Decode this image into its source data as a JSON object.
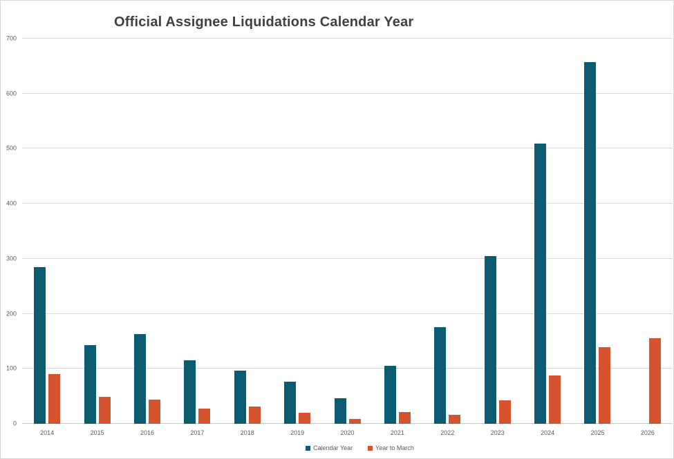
{
  "chart_data": {
    "type": "bar",
    "title": "Official Assignee Liquidations Calendar Year",
    "categories": [
      "2014",
      "2015",
      "2016",
      "2017",
      "2018",
      "2019",
      "2020",
      "2021",
      "2022",
      "2023",
      "2024",
      "2025",
      "2026"
    ],
    "series": [
      {
        "name": "Calendar Year",
        "color": "#0B5B73",
        "values": [
          285,
          143,
          163,
          116,
          97,
          77,
          47,
          105,
          176,
          305,
          509,
          657,
          null
        ]
      },
      {
        "name": "Year to March",
        "color": "#D5532F",
        "values": [
          90,
          49,
          44,
          27,
          31,
          20,
          9,
          21,
          16,
          43,
          88,
          139,
          156
        ]
      }
    ],
    "xlabel": "",
    "ylabel": "",
    "ylim": [
      0,
      700
    ],
    "y_ticks": [
      0,
      100,
      200,
      300,
      400,
      500,
      600,
      700
    ],
    "grid": "horizontal",
    "legend_position": "bottom-center",
    "colors": {
      "gridline": "#D9D9D9",
      "baseline": "#C9C9C9",
      "axis_text": "#595959",
      "title_text": "#404040",
      "background": "#FFFFFF",
      "border": "#D6D6D6"
    }
  }
}
